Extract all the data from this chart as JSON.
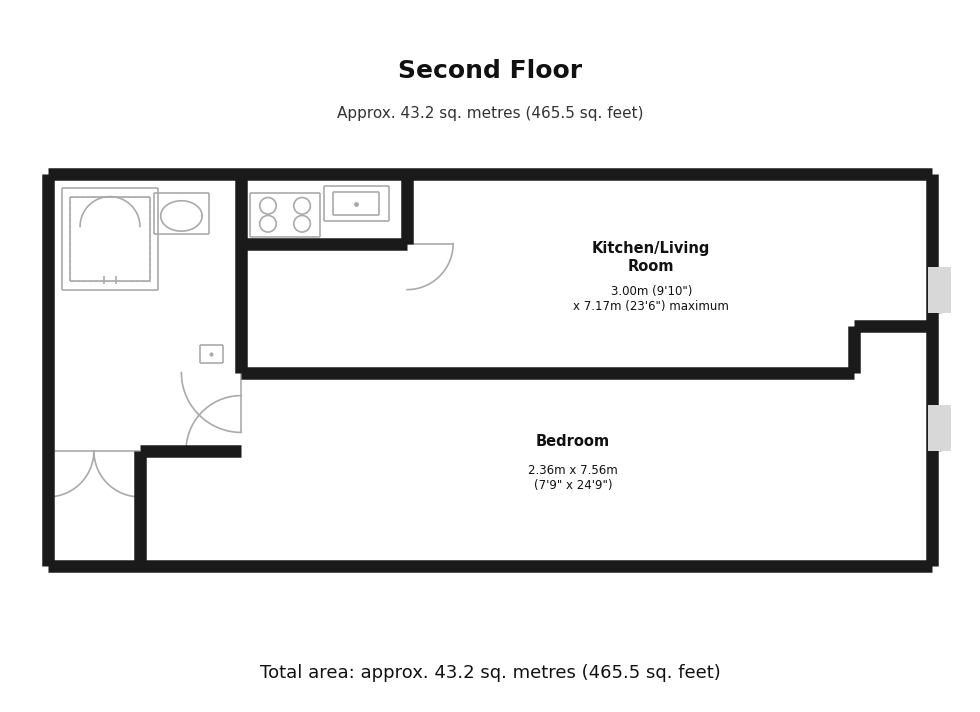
{
  "title": "Second Floor",
  "subtitle": "Approx. 43.2 sq. metres (465.5 sq. feet)",
  "footer": "Total area: approx. 43.2 sq. metres (465.5 sq. feet)",
  "kitchen_label": "Kitchen/Living\nRoom",
  "kitchen_dims": "3.00m (9'10\")\nx 7.17m (23'6\") maximum",
  "bedroom_label": "Bedroom",
  "bedroom_dims": "2.36m x 7.56m\n(7'9\" x 24'9\")",
  "wall_color": "#1a1a1a",
  "bg_color": "#ffffff",
  "thin_color": "#aaaaaa",
  "lw_thick": 9,
  "lw_thin": 1.2
}
